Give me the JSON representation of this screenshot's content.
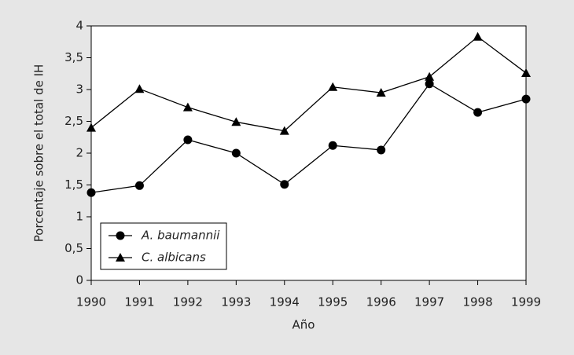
{
  "chart_data": {
    "type": "line",
    "x_label": "Año",
    "y_label": "Porcentaje sobre el total de IH",
    "x": [
      1990,
      1991,
      1992,
      1993,
      1994,
      1995,
      1996,
      1997,
      1998,
      1999
    ],
    "series": [
      {
        "name": "A. baumannii",
        "color": "#000000",
        "marker": "circle",
        "values": [
          1.38,
          1.49,
          2.21,
          2.0,
          1.51,
          2.12,
          2.05,
          3.09,
          2.64,
          2.85
        ]
      },
      {
        "name": "C. albicans",
        "color": "#000000",
        "marker": "triangle",
        "values": [
          2.4,
          3.01,
          2.72,
          2.49,
          2.35,
          3.04,
          2.95,
          3.2,
          3.83,
          3.26
        ]
      }
    ],
    "xlim": [
      1990,
      1999
    ],
    "xticks": [
      1990,
      1991,
      1992,
      1993,
      1994,
      1995,
      1996,
      1997,
      1998,
      1999
    ],
    "ylim": [
      0,
      4
    ],
    "yticks": [
      0,
      {
        "value": 0.5,
        "label": "0,5"
      },
      1,
      {
        "value": 1.5,
        "label": "1,5"
      },
      2,
      {
        "value": 2.5,
        "label": "2,5"
      },
      3,
      {
        "value": 3.5,
        "label": "3,5"
      },
      4
    ],
    "legend": "lower left",
    "grid": false
  }
}
